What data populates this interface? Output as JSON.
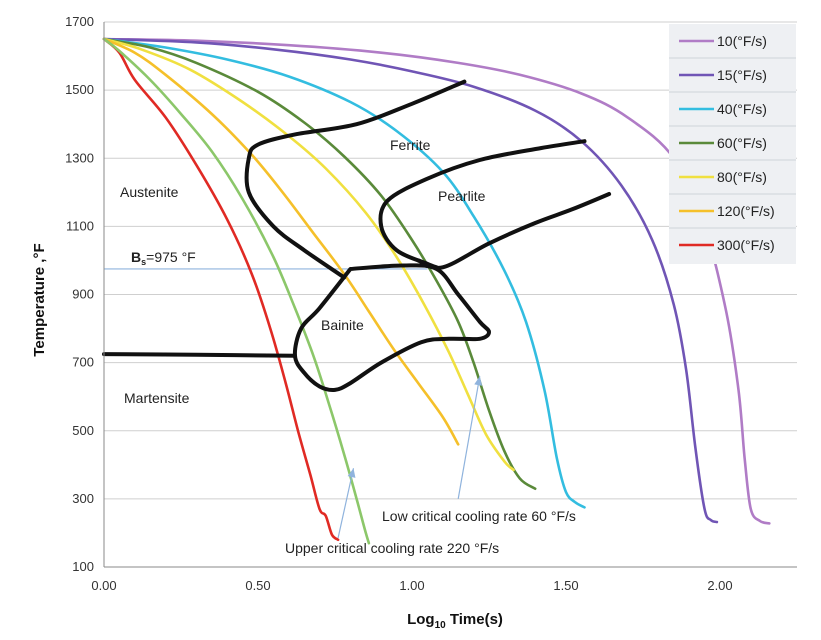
{
  "chart_data": {
    "type": "line",
    "title": "",
    "xlabel_main": "Log",
    "xlabel_sub": "10",
    "xlabel_rest": " Time(s)",
    "ylabel": "Temperature ,°F",
    "xlim": [
      0,
      2.25
    ],
    "ylim": [
      100,
      1700
    ],
    "x_ticks": [
      "0.00",
      "0.50",
      "1.00",
      "1.50",
      "2.00"
    ],
    "x_tick_values": [
      0,
      0.5,
      1.0,
      1.5,
      2.0
    ],
    "y_ticks": [
      "100",
      "300",
      "500",
      "700",
      "900",
      "1100",
      "1300",
      "1500",
      "1700"
    ],
    "y_tick_values": [
      100,
      300,
      500,
      700,
      900,
      1100,
      1300,
      1500,
      1700
    ],
    "grid": "horizontal",
    "legend_position": "top-right",
    "series": [
      {
        "name": "10(°F/s)",
        "color": "#b07cc6",
        "points": [
          [
            0,
            1650
          ],
          [
            0.3,
            1645
          ],
          [
            0.6,
            1632
          ],
          [
            0.9,
            1610
          ],
          [
            1.15,
            1580
          ],
          [
            1.35,
            1545
          ],
          [
            1.55,
            1490
          ],
          [
            1.7,
            1420
          ],
          [
            1.85,
            1300
          ],
          [
            1.95,
            1100
          ],
          [
            2.02,
            850
          ],
          [
            2.06,
            620
          ],
          [
            2.08,
            420
          ],
          [
            2.1,
            270
          ],
          [
            2.13,
            235
          ],
          [
            2.16,
            228
          ]
        ]
      },
      {
        "name": "15(°F/s)",
        "color": "#7055b5",
        "points": [
          [
            0,
            1650
          ],
          [
            0.3,
            1640
          ],
          [
            0.55,
            1620
          ],
          [
            0.8,
            1590
          ],
          [
            1.0,
            1555
          ],
          [
            1.2,
            1510
          ],
          [
            1.4,
            1440
          ],
          [
            1.55,
            1350
          ],
          [
            1.68,
            1220
          ],
          [
            1.78,
            1060
          ],
          [
            1.85,
            870
          ],
          [
            1.89,
            680
          ],
          [
            1.92,
            450
          ],
          [
            1.95,
            270
          ],
          [
            1.97,
            238
          ],
          [
            1.99,
            232
          ]
        ]
      },
      {
        "name": "40(°F/s)",
        "color": "#33bde0",
        "points": [
          [
            0,
            1650
          ],
          [
            0.2,
            1625
          ],
          [
            0.4,
            1590
          ],
          [
            0.6,
            1540
          ],
          [
            0.8,
            1465
          ],
          [
            0.95,
            1380
          ],
          [
            1.1,
            1260
          ],
          [
            1.2,
            1130
          ],
          [
            1.3,
            970
          ],
          [
            1.37,
            820
          ],
          [
            1.43,
            620
          ],
          [
            1.47,
            420
          ],
          [
            1.5,
            320
          ],
          [
            1.53,
            290
          ],
          [
            1.56,
            275
          ]
        ]
      },
      {
        "name": "60(°F/s)",
        "color": "#5a8a3a",
        "points": [
          [
            0,
            1650
          ],
          [
            0.15,
            1625
          ],
          [
            0.3,
            1580
          ],
          [
            0.5,
            1495
          ],
          [
            0.65,
            1405
          ],
          [
            0.78,
            1305
          ],
          [
            0.9,
            1190
          ],
          [
            1.0,
            1060
          ],
          [
            1.08,
            940
          ],
          [
            1.15,
            820
          ],
          [
            1.2,
            700
          ],
          [
            1.25,
            560
          ],
          [
            1.3,
            440
          ],
          [
            1.35,
            360
          ],
          [
            1.4,
            330
          ]
        ]
      },
      {
        "name": "80(°F/s)",
        "color": "#f0e040",
        "points": [
          [
            0,
            1650
          ],
          [
            0.12,
            1620
          ],
          [
            0.28,
            1560
          ],
          [
            0.45,
            1465
          ],
          [
            0.6,
            1365
          ],
          [
            0.72,
            1270
          ],
          [
            0.85,
            1140
          ],
          [
            0.95,
            1010
          ],
          [
            1.04,
            870
          ],
          [
            1.12,
            730
          ],
          [
            1.18,
            610
          ],
          [
            1.24,
            490
          ],
          [
            1.3,
            410
          ],
          [
            1.33,
            385
          ]
        ]
      },
      {
        "name": "120(°F/s)",
        "color": "#f5c02a",
        "points": [
          [
            0,
            1650
          ],
          [
            0.1,
            1610
          ],
          [
            0.2,
            1545
          ],
          [
            0.35,
            1430
          ],
          [
            0.48,
            1310
          ],
          [
            0.58,
            1200
          ],
          [
            0.68,
            1080
          ],
          [
            0.78,
            960
          ],
          [
            0.86,
            850
          ],
          [
            0.94,
            740
          ],
          [
            1.02,
            640
          ],
          [
            1.1,
            540
          ],
          [
            1.15,
            460
          ]
        ]
      },
      {
        "name": "300(°F/s)",
        "color": "#e02a24",
        "points": [
          [
            0,
            1650
          ],
          [
            0.05,
            1610
          ],
          [
            0.1,
            1530
          ],
          [
            0.2,
            1420
          ],
          [
            0.3,
            1280
          ],
          [
            0.4,
            1120
          ],
          [
            0.48,
            960
          ],
          [
            0.54,
            800
          ],
          [
            0.59,
            640
          ],
          [
            0.63,
            500
          ],
          [
            0.67,
            370
          ],
          [
            0.7,
            270
          ],
          [
            0.72,
            250
          ],
          [
            0.74,
            195
          ],
          [
            0.76,
            180
          ]
        ]
      },
      {
        "name": "upper-critical",
        "color": "#8cc76a",
        "legend": false,
        "points": [
          [
            0,
            1650
          ],
          [
            0.05,
            1615
          ],
          [
            0.15,
            1530
          ],
          [
            0.25,
            1430
          ],
          [
            0.35,
            1320
          ],
          [
            0.45,
            1180
          ],
          [
            0.55,
            1010
          ],
          [
            0.62,
            860
          ],
          [
            0.68,
            720
          ],
          [
            0.73,
            580
          ],
          [
            0.78,
            430
          ],
          [
            0.82,
            300
          ],
          [
            0.85,
            200
          ],
          [
            0.86,
            170
          ]
        ]
      }
    ],
    "transformation_curves": [
      {
        "name": "ferrite-start",
        "points": [
          [
            1.17,
            1525
          ],
          [
            1.0,
            1460
          ],
          [
            0.82,
            1400
          ],
          [
            0.62,
            1370
          ],
          [
            0.5,
            1340
          ],
          [
            0.47,
            1300
          ],
          [
            0.47,
            1200
          ],
          [
            0.55,
            1100
          ],
          [
            0.65,
            1030
          ],
          [
            0.78,
            950
          ]
        ]
      },
      {
        "name": "pearlite-start",
        "points": [
          [
            1.56,
            1350
          ],
          [
            1.42,
            1330
          ],
          [
            1.22,
            1295
          ],
          [
            1.05,
            1240
          ],
          [
            0.92,
            1175
          ],
          [
            0.9,
            1100
          ],
          [
            0.95,
            1030
          ],
          [
            1.05,
            990
          ],
          [
            1.08,
            980
          ]
        ]
      },
      {
        "name": "pearlite-finish",
        "points": [
          [
            1.64,
            1195
          ],
          [
            1.52,
            1150
          ],
          [
            1.4,
            1110
          ],
          [
            1.25,
            1050
          ],
          [
            1.1,
            980
          ],
          [
            1.02,
            1000
          ]
        ]
      },
      {
        "name": "bainite-region",
        "closed": true,
        "points": [
          [
            0.8,
            975
          ],
          [
            0.97,
            985
          ],
          [
            1.08,
            975
          ],
          [
            1.15,
            900
          ],
          [
            1.22,
            820
          ],
          [
            1.25,
            790
          ],
          [
            1.22,
            770
          ],
          [
            1.12,
            770
          ],
          [
            1.03,
            760
          ],
          [
            0.9,
            700
          ],
          [
            0.8,
            640
          ],
          [
            0.75,
            620
          ],
          [
            0.7,
            630
          ],
          [
            0.65,
            670
          ],
          [
            0.62,
            720
          ],
          [
            0.64,
            800
          ],
          [
            0.7,
            860
          ],
          [
            0.8,
            975
          ]
        ]
      },
      {
        "name": "martensite-start",
        "points": [
          [
            0,
            725
          ],
          [
            0.3,
            723
          ],
          [
            0.62,
            720
          ]
        ]
      }
    ],
    "bs_line": {
      "value": 975,
      "x_end": 1.05,
      "color": "#8fb3dd"
    },
    "labels": {
      "austenite": "Austenite",
      "ferrite": "Ferrite",
      "pearlite": "Pearlite",
      "bainite": "Bainite",
      "martensite": "Martensite",
      "bs_prefix": "B",
      "bs_sub": "s",
      "bs_suffix": "=975 °F"
    },
    "annotations": [
      {
        "name": "low-critical",
        "text": "Low critical cooling rate 60 °F/s",
        "arrow_from": [
          1.15,
          300
        ],
        "arrow_to": [
          1.22,
          660
        ]
      },
      {
        "name": "upper-critical",
        "text": "Upper critical cooling rate 220 °F/s",
        "arrow_from": [
          0.76,
          185
        ],
        "arrow_to": [
          0.81,
          390
        ]
      }
    ]
  }
}
